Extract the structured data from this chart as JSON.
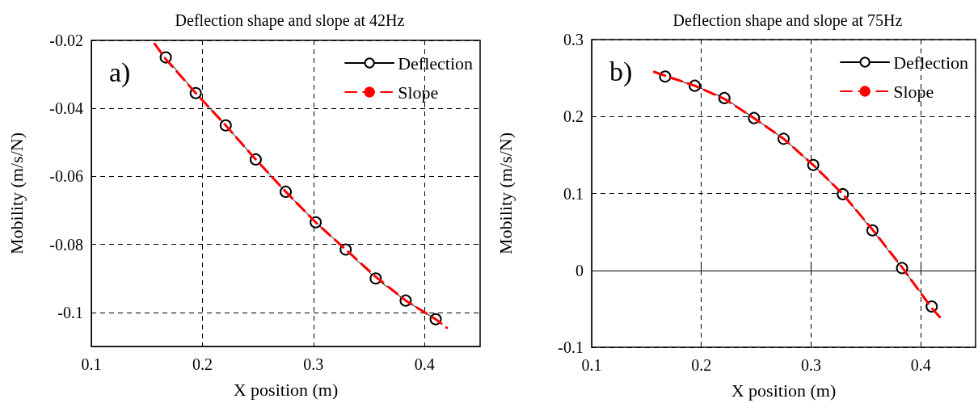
{
  "chart_data": [
    {
      "type": "line",
      "title": "Deflection shape and slope at 42Hz",
      "xlabel": "X position (m)",
      "ylabel": "Mobility (m/s/N)",
      "annotations": [
        "a)"
      ],
      "xlim": [
        0.1,
        0.45
      ],
      "xticks": [
        0.1,
        0.2,
        0.3,
        0.4
      ],
      "ylim": [
        -0.11,
        -0.02
      ],
      "yticks": [
        -0.1,
        -0.08,
        -0.06,
        -0.04,
        -0.02
      ],
      "grid": true,
      "legend": "top right",
      "series": [
        {
          "name": "Deflection",
          "color": "#000000",
          "marker": "circle",
          "line_style": "solid",
          "x": [
            0.167,
            0.194,
            0.221,
            0.248,
            0.275,
            0.302,
            0.329,
            0.356,
            0.383,
            0.41
          ],
          "values": [
            -0.025,
            -0.0355,
            -0.045,
            -0.055,
            -0.0645,
            -0.0735,
            -0.0815,
            -0.09,
            -0.0965,
            -0.102
          ]
        },
        {
          "name": "Slope",
          "color": "#ff0000",
          "marker": "none",
          "line_style": "dashed",
          "x": [
            0.157,
            0.167,
            0.194,
            0.221,
            0.248,
            0.275,
            0.302,
            0.329,
            0.356,
            0.383,
            0.41,
            0.42
          ],
          "values": [
            -0.021,
            -0.0255,
            -0.0355,
            -0.045,
            -0.055,
            -0.0645,
            -0.0735,
            -0.0815,
            -0.0895,
            -0.0965,
            -0.102,
            -0.1045
          ]
        }
      ]
    },
    {
      "type": "line",
      "title": "Deflection shape and slope at 75Hz",
      "xlabel": "X position (m)",
      "ylabel": "Mobility (m/s/N)",
      "annotations": [
        "b)"
      ],
      "xlim": [
        0.1,
        0.45
      ],
      "xticks": [
        0.1,
        0.2,
        0.3,
        0.4
      ],
      "ylim": [
        -0.1,
        0.3
      ],
      "yticks": [
        -0.1,
        0,
        0.1,
        0.2,
        0.3
      ],
      "grid": true,
      "legend": "top right",
      "series": [
        {
          "name": "Deflection",
          "color": "#000000",
          "marker": "circle",
          "line_style": "solid",
          "x": [
            0.167,
            0.194,
            0.221,
            0.248,
            0.275,
            0.302,
            0.329,
            0.356,
            0.383,
            0.41
          ],
          "values": [
            0.252,
            0.24,
            0.224,
            0.198,
            0.171,
            0.137,
            0.099,
            0.052,
            0.003,
            -0.047
          ]
        },
        {
          "name": "Slope",
          "color": "#ff0000",
          "marker": "none",
          "line_style": "dashed",
          "x": [
            0.157,
            0.167,
            0.194,
            0.221,
            0.248,
            0.275,
            0.302,
            0.329,
            0.356,
            0.383,
            0.41,
            0.42
          ],
          "values": [
            0.258,
            0.253,
            0.24,
            0.223,
            0.198,
            0.171,
            0.137,
            0.099,
            0.053,
            0.004,
            -0.049,
            -0.065
          ]
        }
      ]
    }
  ]
}
